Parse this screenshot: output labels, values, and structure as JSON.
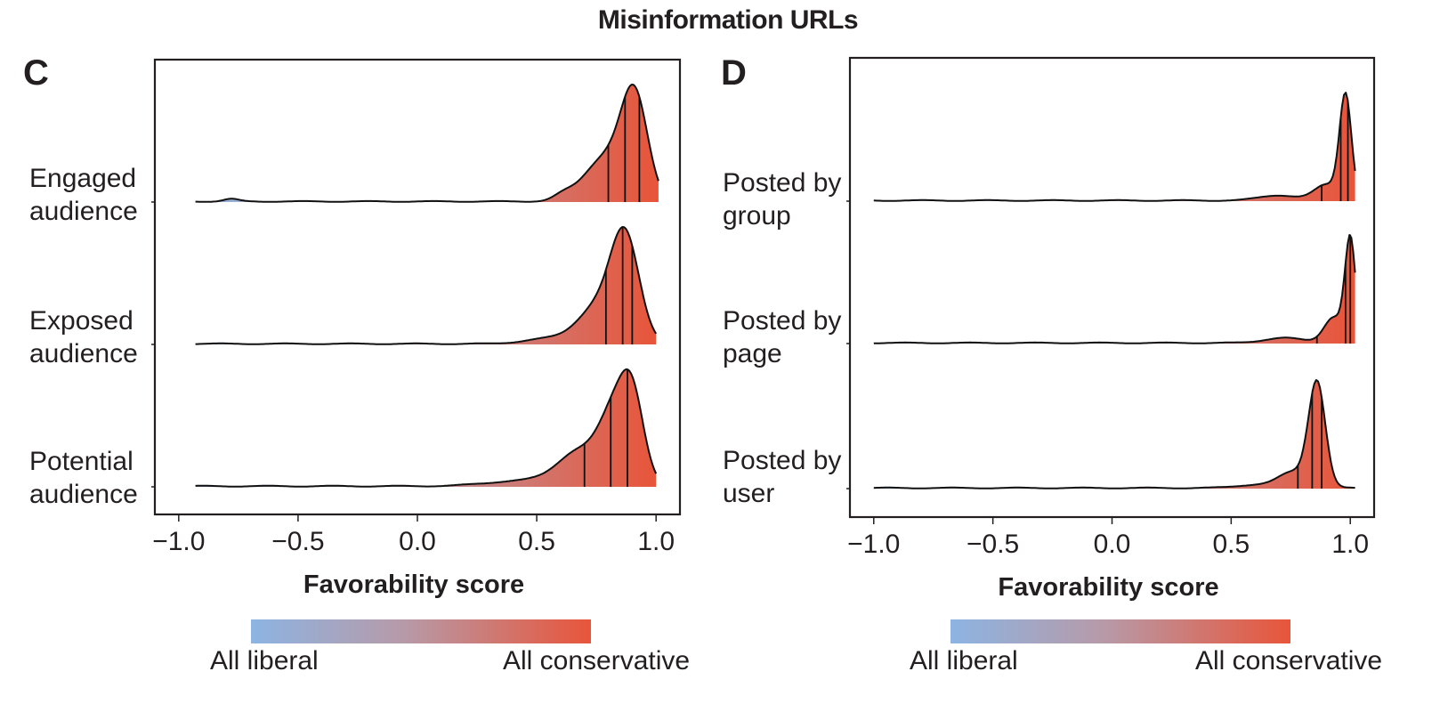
{
  "title": "Misinformation URLs",
  "colors": {
    "liberal": "#8db4e2",
    "middle": "#b79aa8",
    "conservative": "#e8553a",
    "axis": "#231f20",
    "outline": "#111111"
  },
  "colorbar": {
    "left_label": "All liberal",
    "right_label": "All conservative"
  },
  "chart_data": [
    {
      "panel": "C",
      "type": "ridgeline-density",
      "xlabel": "Favorability score",
      "xlim": [
        -1.1,
        1.1
      ],
      "xticks": [
        "−1.0",
        "−0.5",
        "0.0",
        "0.5",
        "1.0"
      ],
      "xtick_values": [
        -1.0,
        -0.5,
        0.0,
        0.5,
        1.0
      ],
      "series": [
        {
          "label_lines": [
            "Engaged",
            "audience"
          ],
          "x_range": [
            -0.93,
            1.01
          ],
          "peaks": [
            {
              "mu": 0.91,
              "sigma": 0.055,
              "amp": 1.0
            },
            {
              "mu": 0.79,
              "sigma": 0.09,
              "amp": 0.45
            },
            {
              "mu": 0.61,
              "sigma": 0.04,
              "amp": 0.05
            },
            {
              "mu": -0.78,
              "sigma": 0.03,
              "amp": 0.025
            }
          ],
          "quartiles": [
            0.8,
            0.87,
            0.93
          ]
        },
        {
          "label_lines": [
            "Exposed",
            "audience"
          ],
          "x_range": [
            -0.93,
            1.0
          ],
          "peaks": [
            {
              "mu": 0.87,
              "sigma": 0.06,
              "amp": 1.0
            },
            {
              "mu": 0.75,
              "sigma": 0.08,
              "amp": 0.33
            },
            {
              "mu": 0.55,
              "sigma": 0.1,
              "amp": 0.05
            }
          ],
          "quartiles": [
            0.79,
            0.86,
            0.9
          ]
        },
        {
          "label_lines": [
            "Potential",
            "audience"
          ],
          "x_range": [
            -0.93,
            1.0
          ],
          "peaks": [
            {
              "mu": 0.9,
              "sigma": 0.05,
              "amp": 0.75
            },
            {
              "mu": 0.82,
              "sigma": 0.06,
              "amp": 0.55
            },
            {
              "mu": 0.68,
              "sigma": 0.09,
              "amp": 0.3
            },
            {
              "mu": 0.45,
              "sigma": 0.15,
              "amp": 0.05
            }
          ],
          "quartiles": [
            0.7,
            0.81,
            0.88
          ]
        }
      ]
    },
    {
      "panel": "D",
      "type": "ridgeline-density",
      "xlabel": "Favorability score",
      "xlim": [
        -1.1,
        1.1
      ],
      "xticks": [
        "−1.0",
        "−0.5",
        "0.0",
        "0.5",
        "1.0"
      ],
      "xtick_values": [
        -1.0,
        -0.5,
        0.0,
        0.5,
        1.0
      ],
      "series": [
        {
          "label_lines": [
            "Posted by",
            "group"
          ],
          "x_range": [
            -1.0,
            1.02
          ],
          "peaks": [
            {
              "mu": 0.98,
              "sigma": 0.025,
              "amp": 1.0
            },
            {
              "mu": 0.9,
              "sigma": 0.05,
              "amp": 0.15
            },
            {
              "mu": 0.7,
              "sigma": 0.08,
              "amp": 0.05
            }
          ],
          "quartiles": [
            0.88,
            0.96,
            0.99
          ]
        },
        {
          "label_lines": [
            "Posted by",
            "page"
          ],
          "x_range": [
            -1.0,
            1.02
          ],
          "peaks": [
            {
              "mu": 1.0,
              "sigma": 0.022,
              "amp": 1.0
            },
            {
              "mu": 0.93,
              "sigma": 0.04,
              "amp": 0.25
            },
            {
              "mu": 0.72,
              "sigma": 0.08,
              "amp": 0.05
            }
          ],
          "quartiles": [
            0.86,
            0.98,
            1.0
          ]
        },
        {
          "label_lines": [
            "Posted by",
            "user"
          ],
          "x_range": [
            -1.0,
            1.02
          ],
          "peaks": [
            {
              "mu": 0.86,
              "sigma": 0.035,
              "amp": 1.0
            },
            {
              "mu": 0.76,
              "sigma": 0.06,
              "amp": 0.15
            },
            {
              "mu": 0.6,
              "sigma": 0.08,
              "amp": 0.03
            }
          ],
          "quartiles": [
            0.78,
            0.84,
            0.88
          ]
        }
      ]
    }
  ]
}
